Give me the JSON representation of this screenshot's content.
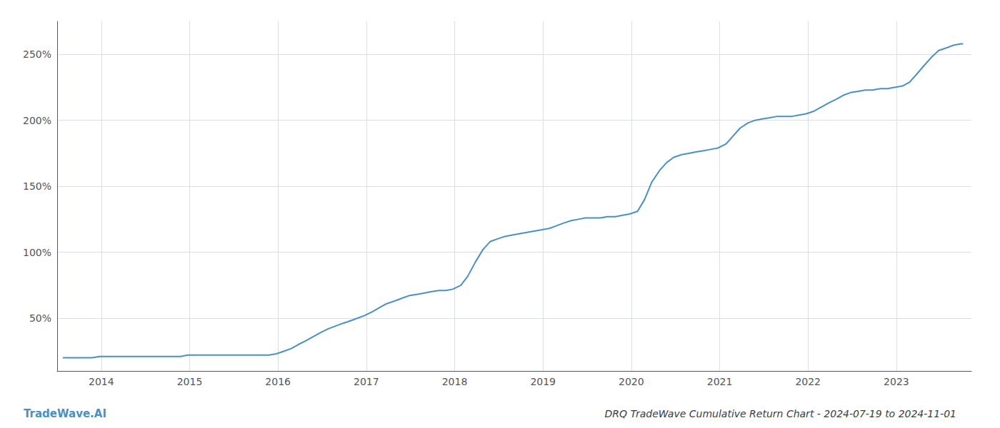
{
  "chart_data": {
    "type": "line",
    "title": "DRQ TradeWave Cumulative Return Chart - 2024-07-19 to 2024-11-01",
    "annotations": [
      "TradeWave.AI"
    ],
    "color": "#4a90c4",
    "x": [
      2013.57,
      2013.65,
      2013.73,
      2013.82,
      2013.9,
      2013.98,
      2014.07,
      2014.15,
      2014.23,
      2014.32,
      2014.4,
      2014.48,
      2014.57,
      2014.65,
      2014.73,
      2014.82,
      2014.9,
      2014.98,
      2015.07,
      2015.15,
      2015.23,
      2015.32,
      2015.4,
      2015.48,
      2015.57,
      2015.65,
      2015.73,
      2015.82,
      2015.9,
      2015.98,
      2016.07,
      2016.15,
      2016.23,
      2016.32,
      2016.4,
      2016.48,
      2016.57,
      2016.65,
      2016.73,
      2016.82,
      2016.9,
      2016.98,
      2017.07,
      2017.15,
      2017.23,
      2017.32,
      2017.4,
      2017.48,
      2017.57,
      2017.65,
      2017.73,
      2017.82,
      2017.9,
      2017.98,
      2018.07,
      2018.15,
      2018.23,
      2018.32,
      2018.4,
      2018.48,
      2018.57,
      2018.65,
      2018.73,
      2018.82,
      2018.9,
      2018.98,
      2019.07,
      2019.15,
      2019.23,
      2019.32,
      2019.4,
      2019.48,
      2019.57,
      2019.65,
      2019.73,
      2019.82,
      2019.9,
      2019.98,
      2020.07,
      2020.15,
      2020.23,
      2020.32,
      2020.4,
      2020.48,
      2020.57,
      2020.65,
      2020.73,
      2020.82,
      2020.9,
      2020.98,
      2021.07,
      2021.15,
      2021.23,
      2021.32,
      2021.4,
      2021.48,
      2021.57,
      2021.65,
      2021.73,
      2021.82,
      2021.9,
      2021.98,
      2022.07,
      2022.15,
      2022.23,
      2022.32,
      2022.4,
      2022.48,
      2022.57,
      2022.65,
      2022.73,
      2022.82,
      2022.9,
      2022.98,
      2023.07,
      2023.15,
      2023.23,
      2023.32,
      2023.4,
      2023.48,
      2023.57,
      2023.65,
      2023.73,
      2023.75
    ],
    "values": [
      20,
      20,
      20,
      20,
      20,
      21,
      21,
      21,
      21,
      21,
      21,
      21,
      21,
      21,
      21,
      21,
      21,
      22,
      22,
      22,
      22,
      22,
      22,
      22,
      22,
      22,
      22,
      22,
      22,
      23,
      25,
      27,
      30,
      33,
      36,
      39,
      42,
      44,
      46,
      48,
      50,
      52,
      55,
      58,
      61,
      63,
      65,
      67,
      68,
      69,
      70,
      71,
      71,
      72,
      75,
      82,
      92,
      102,
      108,
      110,
      112,
      113,
      114,
      115,
      116,
      117,
      118,
      120,
      122,
      124,
      125,
      126,
      126,
      126,
      127,
      127,
      128,
      129,
      131,
      140,
      153,
      162,
      168,
      172,
      174,
      175,
      176,
      177,
      178,
      179,
      182,
      188,
      194,
      198,
      200,
      201,
      202,
      203,
      203,
      203,
      204,
      205,
      207,
      210,
      213,
      216,
      219,
      221,
      222,
      223,
      223,
      224,
      224,
      225,
      226,
      229,
      235,
      242,
      248,
      253,
      255,
      257,
      258,
      258
    ],
    "xlim": [
      2013.5,
      2023.85
    ],
    "xticks": [
      2014,
      2015,
      2016,
      2017,
      2018,
      2019,
      2020,
      2021,
      2022,
      2023
    ],
    "ylim": [
      10,
      275
    ],
    "yticks": [
      {
        "value": 50,
        "label": "50%"
      },
      {
        "value": 100,
        "label": "100%"
      },
      {
        "value": 150,
        "label": "150%"
      },
      {
        "value": 200,
        "label": "200%"
      },
      {
        "value": 250,
        "label": "250%"
      }
    ],
    "grid": true
  }
}
